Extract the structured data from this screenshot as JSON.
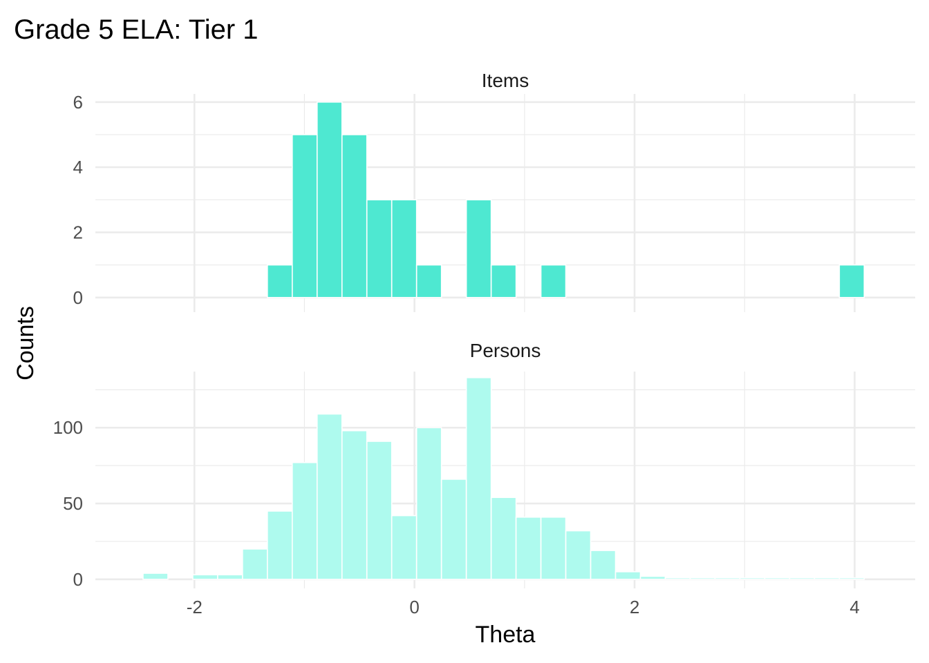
{
  "chart_data": {
    "type": "bar",
    "title": "Grade 5 ELA: Tier 1",
    "xlabel": "Theta",
    "ylabel": "Counts",
    "bin_width": 0.226,
    "bin_centers": [
      -2.58,
      -2.354,
      -2.128,
      -1.902,
      -1.676,
      -1.45,
      -1.224,
      -0.998,
      -0.772,
      -0.546,
      -0.32,
      -0.094,
      0.132,
      0.358,
      0.584,
      0.81,
      1.036,
      1.262,
      1.488,
      1.714,
      1.94,
      2.166,
      2.392,
      2.618,
      2.844,
      3.07,
      3.296,
      3.522,
      3.748,
      3.974
    ],
    "x_ticks": [
      -2,
      0,
      2,
      4
    ],
    "xlim": [
      -2.9,
      4.55
    ],
    "grid": true,
    "panels": [
      {
        "strip_label": "Items",
        "color": "#4EE8D1",
        "ylim": [
          -0.45,
          6.25
        ],
        "y_ticks": [
          0,
          2,
          4,
          6
        ],
        "values": [
          0,
          0,
          0,
          0,
          0,
          0,
          1,
          5,
          6,
          5,
          3,
          3,
          1,
          0,
          3,
          1,
          0,
          1,
          0,
          0,
          0,
          0,
          0,
          0,
          0,
          0,
          0,
          0,
          0,
          1
        ]
      },
      {
        "strip_label": "Persons",
        "color": "#AEFAEE",
        "ylim": [
          -6,
          137
        ],
        "y_ticks": [
          0,
          50,
          100
        ],
        "values": [
          0,
          4,
          0,
          3,
          3,
          20,
          45,
          77,
          109,
          98,
          91,
          42,
          100,
          66,
          133,
          54,
          41,
          41,
          32,
          19,
          5,
          2,
          1,
          1,
          1,
          1,
          1,
          1,
          1,
          1
        ]
      }
    ]
  }
}
